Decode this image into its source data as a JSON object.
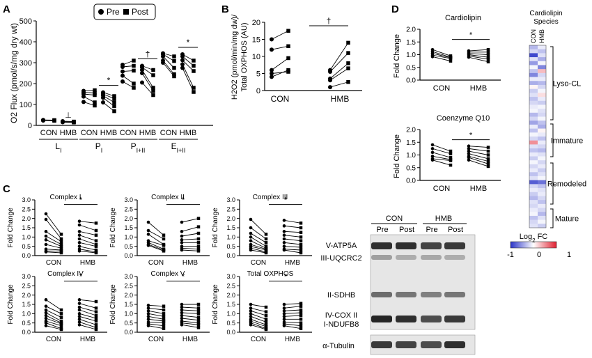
{
  "panels": {
    "A": "A",
    "B": "B",
    "C": "C",
    "D": "D"
  },
  "legend": {
    "pre": "Pre",
    "post": "Post"
  },
  "chart_data": [
    {
      "id": "A",
      "type": "scatter",
      "ylabel": "O2 Flux (pmol/s/mg dry wt)",
      "ylim": [
        0,
        500
      ],
      "yticks": [
        0,
        100,
        200,
        300,
        400,
        500
      ],
      "groups": [
        {
          "label": "L",
          "sub": "I",
          "sig": "⊥",
          "sig_on": "HMB",
          "CON": {
            "pre": [
              23,
              25,
              26
            ],
            "post": [
              22,
              24,
              25
            ]
          },
          "HMB": {
            "pre": [
              15,
              17,
              20
            ],
            "post": [
              14,
              16,
              18
            ]
          }
        },
        {
          "label": "P",
          "sub": "I",
          "sig": "*",
          "sig_on": "HMB",
          "CON": {
            "pre": [
              165,
              158,
              150,
              138,
              112
            ],
            "post": [
              168,
              155,
              145,
              110,
              95
            ]
          },
          "HMB": {
            "pre": [
              158,
              150,
              142,
              132,
              110
            ],
            "post": [
              140,
              128,
              110,
              92,
              68
            ]
          }
        },
        {
          "label": "P",
          "sub": "I+II",
          "sig": "†",
          "sig_on": "HMB",
          "CON": {
            "pre": [
              290,
              280,
              258,
              238,
              210
            ],
            "post": [
              310,
              285,
              262,
              200,
              180
            ]
          },
          "HMB": {
            "pre": [
              285,
              278,
              265,
              250,
              205
            ],
            "post": [
              265,
              240,
              180,
              165,
              145
            ]
          }
        },
        {
          "label": "E",
          "sub": "I+II",
          "sig": "*",
          "sig_on": "HMB",
          "CON": {
            "pre": [
              345,
              340,
              330,
              310,
              300
            ],
            "post": [
              330,
              308,
              275,
              245,
              235
            ]
          },
          "HMB": {
            "pre": [
              340,
              330,
              312,
              292,
              275
            ],
            "post": [
              310,
              285,
              260,
              180,
              160
            ]
          }
        }
      ]
    },
    {
      "id": "B",
      "type": "scatter",
      "ylabel": "H2O2 (pmol/min/mg dw)/ Total OXPHOS (AU)",
      "ylim": [
        0,
        20
      ],
      "yticks": [
        0,
        5,
        10,
        15,
        20
      ],
      "categories": [
        "CON",
        "HMB"
      ],
      "sig": "†",
      "CON": {
        "pre": [
          15.0,
          12.0,
          6.0,
          5.0,
          4.0
        ],
        "post": [
          17.5,
          13.0,
          9.5,
          5.5,
          6.0
        ]
      },
      "HMB": {
        "pre": [
          6.0,
          5.5,
          3.0,
          1.0,
          3.5
        ],
        "post": [
          14.0,
          11.0,
          6.5,
          2.5,
          8.0
        ]
      }
    },
    {
      "id": "C",
      "type": "scatter",
      "ylabel": "Fold Change",
      "ylim": [
        0,
        3
      ],
      "yticks": [
        "0.0",
        "0.5",
        "1.0",
        "1.5",
        "2.0",
        "2.5",
        "3.0"
      ],
      "categories": [
        "CON",
        "HMB"
      ],
      "subplots": [
        {
          "title": "Complex I",
          "sig": "*",
          "CON": {
            "pre": [
              2.25,
              1.95,
              1.3,
              1.05,
              0.85,
              0.6,
              0.35,
              0.25,
              0.2
            ],
            "post": [
              1.15,
              0.9,
              0.75,
              0.6,
              0.5,
              0.4,
              0.3,
              0.25,
              0.15
            ]
          },
          "HMB": {
            "pre": [
              1.85,
              1.65,
              1.3,
              1.1,
              0.9,
              0.7,
              0.5,
              0.35,
              0.25
            ],
            "post": [
              1.75,
              1.35,
              1.1,
              0.8,
              0.6,
              0.5,
              0.3,
              0.2,
              0.15
            ]
          }
        },
        {
          "title": "Complex II",
          "sig": "*",
          "CON": {
            "pre": [
              1.8,
              1.35,
              1.15,
              0.8,
              0.7,
              0.6,
              0.55
            ],
            "post": [
              1.1,
              0.9,
              0.6,
              0.55,
              0.35,
              0.3,
              0.25
            ]
          },
          "HMB": {
            "pre": [
              1.8,
              1.3,
              1.05,
              0.85,
              0.7,
              0.5,
              0.4,
              0.3
            ],
            "post": [
              2.0,
              1.55,
              1.2,
              0.9,
              0.7,
              0.5,
              0.35,
              0.25
            ]
          }
        },
        {
          "title": "Complex III",
          "sig": "*",
          "CON": {
            "pre": [
              1.95,
              1.5,
              1.2,
              1.0,
              0.8,
              0.6,
              0.5,
              0.4,
              0.3
            ],
            "post": [
              1.15,
              0.9,
              0.7,
              0.5,
              0.4,
              0.35,
              0.3,
              0.2,
              0.15
            ]
          },
          "HMB": {
            "pre": [
              1.9,
              1.6,
              1.3,
              1.1,
              0.9,
              0.7,
              0.5,
              0.35,
              0.3
            ],
            "post": [
              1.75,
              1.5,
              1.25,
              1.0,
              0.8,
              0.6,
              0.45,
              0.3,
              0.15
            ]
          }
        },
        {
          "title": "Complex IV",
          "sig": "*",
          "CON": {
            "pre": [
              1.75,
              1.4,
              1.2,
              1.05,
              0.9,
              0.75,
              0.6,
              0.5,
              0.35
            ],
            "post": [
              1.2,
              1.0,
              0.8,
              0.6,
              0.5,
              0.45,
              0.35,
              0.2,
              0.15
            ]
          },
          "HMB": {
            "pre": [
              1.75,
              1.55,
              1.35,
              1.2,
              1.0,
              0.85,
              0.7,
              0.55,
              0.4
            ],
            "post": [
              1.65,
              1.3,
              1.1,
              0.9,
              0.75,
              0.6,
              0.4,
              0.25,
              0.15
            ]
          }
        },
        {
          "title": "Complex V",
          "sig": "*",
          "CON": {
            "pre": [
              1.45,
              1.3,
              1.15,
              1.0,
              0.85,
              0.7,
              0.55,
              0.45,
              0.35
            ],
            "post": [
              1.4,
              1.2,
              1.0,
              0.85,
              0.7,
              0.6,
              0.5,
              0.35,
              0.2
            ]
          },
          "HMB": {
            "pre": [
              1.5,
              1.35,
              1.2,
              1.05,
              0.9,
              0.75,
              0.6,
              0.5,
              0.4
            ],
            "post": [
              1.5,
              1.3,
              1.15,
              1.0,
              0.8,
              0.65,
              0.5,
              0.4,
              0.25
            ]
          }
        },
        {
          "title": "Total OXPHOS",
          "sig": "*",
          "CON": {
            "pre": [
              1.5,
              1.3,
              1.15,
              1.0,
              0.85,
              0.7,
              0.6,
              0.5,
              0.4
            ],
            "post": [
              1.35,
              1.1,
              0.9,
              0.7,
              0.55,
              0.4,
              0.3,
              0.2,
              0.15
            ]
          },
          "HMB": {
            "pre": [
              1.5,
              1.3,
              1.15,
              1.0,
              0.85,
              0.7,
              0.55,
              0.45,
              0.35
            ],
            "post": [
              1.55,
              1.4,
              1.2,
              1.05,
              0.9,
              0.7,
              0.5,
              0.35,
              0.2
            ]
          }
        }
      ]
    },
    {
      "id": "D",
      "type": "scatter",
      "ylabel": "Fold  Change",
      "ylim": [
        0,
        2
      ],
      "yticks": [
        "0.0",
        "0.5",
        "1.0",
        "1.5",
        "2.0"
      ],
      "categories": [
        "CON",
        "HMB"
      ],
      "subplots": [
        {
          "title": "Cardiolipin",
          "sig": "*",
          "CON": {
            "pre": [
              1.2,
              1.12,
              1.05,
              0.98,
              0.92
            ],
            "post": [
              0.95,
              0.9,
              0.88,
              0.85,
              0.75
            ]
          },
          "HMB": {
            "pre": [
              1.15,
              1.1,
              1.05,
              1.0,
              0.95,
              0.9
            ],
            "post": [
              1.2,
              1.1,
              1.0,
              0.9,
              0.82,
              0.72
            ]
          }
        },
        {
          "title": "Coenzyme Q10",
          "sig": "*",
          "CON": {
            "pre": [
              1.4,
              1.25,
              1.1,
              0.95,
              0.85,
              0.8
            ],
            "post": [
              1.15,
              1.05,
              0.9,
              0.82,
              0.78,
              0.6
            ]
          },
          "HMB": {
            "pre": [
              1.35,
              1.25,
              1.15,
              1.05,
              0.95,
              0.9,
              0.8
            ],
            "post": [
              1.3,
              1.15,
              1.0,
              0.85,
              0.75,
              0.65,
              0.55
            ]
          }
        }
      ]
    },
    {
      "id": "D-heatmap",
      "type": "heatmap",
      "title": "Cardiolipin Species",
      "columns": [
        "CON",
        "HMB"
      ],
      "groups": [
        "Lyso-CL",
        "Immature",
        "Remodeled",
        "Mature"
      ],
      "colorbar": {
        "label": "Log2 FC",
        "min": "-1",
        "mid": "0",
        "max": "1",
        "low_color": "#2b35c8",
        "high_color": "#e02030"
      },
      "values": [
        [
          -0.35,
          -0.1
        ],
        [
          -0.2,
          -0.3
        ],
        [
          -0.9,
          -0.15
        ],
        [
          -0.15,
          -0.4
        ],
        [
          -0.5,
          -0.05
        ],
        [
          -0.05,
          -0.6
        ],
        [
          -0.3,
          0.3
        ],
        [
          -0.6,
          -0.2
        ],
        [
          -0.1,
          -0.1
        ],
        [
          -0.4,
          -0.35
        ],
        [
          0.05,
          -0.2
        ],
        [
          -0.25,
          -0.05
        ],
        [
          -0.15,
          0.15
        ],
        [
          -0.3,
          -0.1
        ],
        [
          -0.2,
          -0.25
        ],
        [
          -0.1,
          -0.05
        ],
        [
          -0.05,
          -0.15
        ],
        [
          -0.35,
          -0.2
        ],
        [
          -0.2,
          -0.05
        ],
        [
          -0.45,
          -0.3
        ],
        [
          -0.1,
          -0.4
        ],
        [
          -0.3,
          0.05
        ],
        [
          -0.05,
          -0.1
        ],
        [
          -0.2,
          -0.3
        ],
        [
          0.5,
          -0.1
        ],
        [
          -0.15,
          -0.2
        ],
        [
          -0.3,
          -0.35
        ],
        [
          -0.1,
          -0.15
        ],
        [
          -0.25,
          -0.05
        ],
        [
          -0.05,
          -0.2
        ],
        [
          -0.2,
          -0.1
        ],
        [
          -0.1,
          -0.25
        ],
        [
          -0.3,
          -0.15
        ],
        [
          -0.15,
          -0.05
        ],
        [
          -0.8,
          -0.7
        ],
        [
          -0.2,
          -0.3
        ],
        [
          -0.1,
          -0.15
        ],
        [
          -0.25,
          -0.1
        ],
        [
          -0.35,
          -0.2
        ],
        [
          -0.15,
          -0.3
        ],
        [
          -0.2,
          -0.1
        ],
        [
          -0.1,
          -0.2
        ],
        [
          -0.05,
          -0.35
        ],
        [
          -0.3,
          -0.15
        ],
        [
          -0.2,
          -0.05
        ],
        [
          -0.15,
          -0.25
        ]
      ]
    }
  ],
  "blot": {
    "groups": [
      "CON",
      "HMB"
    ],
    "lanes": [
      "Pre",
      "Post",
      "Pre",
      "Post"
    ],
    "bands": [
      "V-ATP5A",
      "III-UQCRC2",
      "II-SDHB",
      "IV-COX II",
      "I-NDUFB8"
    ],
    "loading": "α-Tubulin"
  }
}
